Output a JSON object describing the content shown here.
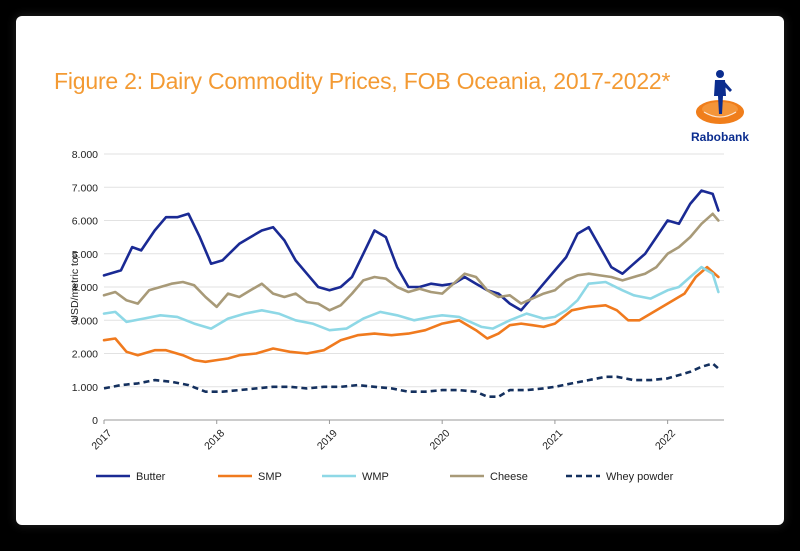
{
  "title": "Figure 2: Dairy Commodity Prices, FOB Oceania, 2017-2022*",
  "brand": "Rabobank",
  "colors": {
    "title": "#F39A33",
    "brand": "#0B2D8F",
    "logo_orange": "#F07E1B",
    "frame": "#000000"
  },
  "chart_data": {
    "type": "line",
    "ylabel": "USD/metric ton",
    "ylim": [
      0,
      8000
    ],
    "yticks": [
      "8.000",
      "7.000",
      "6.000",
      "5.000",
      "4.000",
      "3.000",
      "2.000",
      "1.000",
      "0"
    ],
    "ytick_values": [
      8000,
      7000,
      6000,
      5000,
      4000,
      3000,
      2000,
      1000,
      0
    ],
    "xlim": [
      2017,
      2022.5
    ],
    "xticks": [
      "2017",
      "2018",
      "2019",
      "2020",
      "2021",
      "2022"
    ],
    "xtick_values": [
      2017,
      2018,
      2019,
      2020,
      2021,
      2022
    ],
    "grid": true,
    "legend_position": "bottom",
    "series": [
      {
        "name": "Butter",
        "color": "#1A2A94",
        "dash": "solid",
        "x": [
          2017.0,
          2017.15,
          2017.25,
          2017.33,
          2017.45,
          2017.55,
          2017.65,
          2017.75,
          2017.85,
          2017.95,
          2018.05,
          2018.2,
          2018.3,
          2018.4,
          2018.5,
          2018.6,
          2018.7,
          2018.8,
          2018.9,
          2019.0,
          2019.1,
          2019.2,
          2019.3,
          2019.4,
          2019.5,
          2019.6,
          2019.7,
          2019.8,
          2019.9,
          2020.0,
          2020.1,
          2020.2,
          2020.3,
          2020.4,
          2020.5,
          2020.6,
          2020.7,
          2020.8,
          2020.9,
          2021.0,
          2021.1,
          2021.2,
          2021.3,
          2021.4,
          2021.5,
          2021.6,
          2021.7,
          2021.8,
          2021.9,
          2022.0,
          2022.1,
          2022.2,
          2022.3,
          2022.4,
          2022.45
        ],
        "values": [
          4350,
          4500,
          5200,
          5100,
          5700,
          6100,
          6100,
          6200,
          5500,
          4700,
          4800,
          5300,
          5500,
          5700,
          5800,
          5400,
          4800,
          4400,
          4000,
          3900,
          4000,
          4300,
          5000,
          5700,
          5500,
          4600,
          4000,
          4000,
          4100,
          4050,
          4100,
          4300,
          4100,
          3900,
          3800,
          3500,
          3300,
          3700,
          4100,
          4500,
          4900,
          5600,
          5800,
          5200,
          4600,
          4400,
          4700,
          5000,
          5500,
          6000,
          5900,
          6500,
          6900,
          6800,
          6300
        ]
      },
      {
        "name": "SMP",
        "color": "#F07A1E",
        "dash": "solid",
        "x": [
          2017.0,
          2017.1,
          2017.2,
          2017.3,
          2017.45,
          2017.55,
          2017.7,
          2017.8,
          2017.9,
          2018.0,
          2018.1,
          2018.2,
          2018.35,
          2018.5,
          2018.65,
          2018.8,
          2018.95,
          2019.1,
          2019.25,
          2019.4,
          2019.55,
          2019.7,
          2019.85,
          2020.0,
          2020.15,
          2020.3,
          2020.4,
          2020.5,
          2020.6,
          2020.7,
          2020.8,
          2020.9,
          2021.0,
          2021.15,
          2021.3,
          2021.45,
          2021.55,
          2021.65,
          2021.75,
          2021.85,
          2022.0,
          2022.15,
          2022.25,
          2022.35,
          2022.45
        ],
        "values": [
          2400,
          2450,
          2050,
          1950,
          2100,
          2100,
          1950,
          1800,
          1750,
          1800,
          1850,
          1950,
          2000,
          2150,
          2050,
          2000,
          2100,
          2400,
          2550,
          2600,
          2550,
          2600,
          2700,
          2900,
          3000,
          2700,
          2450,
          2600,
          2850,
          2900,
          2850,
          2800,
          2900,
          3300,
          3400,
          3450,
          3300,
          3000,
          3000,
          3200,
          3500,
          3800,
          4300,
          4600,
          4300
        ]
      },
      {
        "name": "WMP",
        "color": "#8ED8E6",
        "dash": "solid",
        "x": [
          2017.0,
          2017.1,
          2017.2,
          2017.35,
          2017.5,
          2017.65,
          2017.8,
          2017.95,
          2018.1,
          2018.25,
          2018.4,
          2018.55,
          2018.7,
          2018.85,
          2019.0,
          2019.15,
          2019.3,
          2019.45,
          2019.6,
          2019.75,
          2019.9,
          2020.0,
          2020.15,
          2020.25,
          2020.35,
          2020.45,
          2020.6,
          2020.75,
          2020.9,
          2021.0,
          2021.1,
          2021.2,
          2021.3,
          2021.45,
          2021.6,
          2021.7,
          2021.85,
          2022.0,
          2022.1,
          2022.2,
          2022.3,
          2022.4,
          2022.45
        ],
        "values": [
          3200,
          3250,
          2950,
          3050,
          3150,
          3100,
          2900,
          2750,
          3050,
          3200,
          3300,
          3200,
          3000,
          2900,
          2700,
          2750,
          3050,
          3250,
          3150,
          3000,
          3100,
          3150,
          3100,
          2950,
          2800,
          2750,
          3000,
          3200,
          3050,
          3100,
          3300,
          3600,
          4100,
          4150,
          3900,
          3750,
          3650,
          3900,
          4000,
          4300,
          4600,
          4400,
          3850
        ]
      },
      {
        "name": "Cheese",
        "color": "#A89A78",
        "dash": "solid",
        "x": [
          2017.0,
          2017.1,
          2017.2,
          2017.3,
          2017.4,
          2017.5,
          2017.6,
          2017.7,
          2017.8,
          2017.9,
          2018.0,
          2018.1,
          2018.2,
          2018.3,
          2018.4,
          2018.5,
          2018.6,
          2018.7,
          2018.8,
          2018.9,
          2019.0,
          2019.1,
          2019.2,
          2019.3,
          2019.4,
          2019.5,
          2019.6,
          2019.7,
          2019.8,
          2019.9,
          2020.0,
          2020.1,
          2020.2,
          2020.3,
          2020.4,
          2020.5,
          2020.6,
          2020.7,
          2020.8,
          2020.9,
          2021.0,
          2021.1,
          2021.2,
          2021.3,
          2021.4,
          2021.5,
          2021.6,
          2021.7,
          2021.8,
          2021.9,
          2022.0,
          2022.1,
          2022.2,
          2022.3,
          2022.4,
          2022.45
        ],
        "values": [
          3750,
          3850,
          3600,
          3500,
          3900,
          4000,
          4100,
          4150,
          4050,
          3700,
          3400,
          3800,
          3700,
          3900,
          4100,
          3800,
          3700,
          3800,
          3550,
          3500,
          3300,
          3450,
          3800,
          4200,
          4300,
          4250,
          4000,
          3850,
          3950,
          3850,
          3800,
          4100,
          4400,
          4300,
          3900,
          3700,
          3750,
          3500,
          3650,
          3800,
          3900,
          4200,
          4350,
          4400,
          4350,
          4300,
          4200,
          4300,
          4400,
          4600,
          5000,
          5200,
          5500,
          5900,
          6200,
          6000
        ]
      },
      {
        "name": "Whey powder",
        "color": "#14305E",
        "dash": "dashed",
        "x": [
          2017.0,
          2017.15,
          2017.3,
          2017.45,
          2017.6,
          2017.75,
          2017.9,
          2018.05,
          2018.2,
          2018.35,
          2018.5,
          2018.65,
          2018.8,
          2018.95,
          2019.1,
          2019.25,
          2019.4,
          2019.55,
          2019.7,
          2019.85,
          2020.0,
          2020.15,
          2020.3,
          2020.4,
          2020.5,
          2020.6,
          2020.75,
          2020.9,
          2021.0,
          2021.15,
          2021.3,
          2021.45,
          2021.55,
          2021.7,
          2021.85,
          2022.0,
          2022.1,
          2022.2,
          2022.3,
          2022.4,
          2022.45
        ],
        "values": [
          950,
          1050,
          1100,
          1200,
          1150,
          1050,
          850,
          850,
          900,
          950,
          1000,
          1000,
          950,
          1000,
          1000,
          1050,
          1000,
          950,
          850,
          850,
          900,
          900,
          850,
          700,
          700,
          900,
          900,
          950,
          1000,
          1100,
          1200,
          1300,
          1300,
          1200,
          1200,
          1250,
          1350,
          1450,
          1600,
          1700,
          1550
        ]
      }
    ]
  }
}
